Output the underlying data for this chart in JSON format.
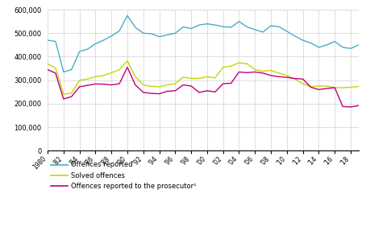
{
  "years": [
    1980,
    1981,
    1982,
    1983,
    1984,
    1985,
    1986,
    1987,
    1988,
    1989,
    1990,
    1991,
    1992,
    1993,
    1994,
    1995,
    1996,
    1997,
    1998,
    1999,
    2000,
    2001,
    2002,
    2003,
    2004,
    2005,
    2006,
    2007,
    2008,
    2009,
    2010,
    2011,
    2012,
    2013,
    2014,
    2015,
    2016,
    2017,
    2018,
    2019
  ],
  "offences_reported": [
    470000,
    465000,
    335000,
    345000,
    422000,
    432000,
    455000,
    470000,
    488000,
    510000,
    575000,
    525000,
    500000,
    498000,
    485000,
    493000,
    500000,
    527000,
    520000,
    535000,
    540000,
    535000,
    528000,
    525000,
    550000,
    527000,
    515000,
    505000,
    532000,
    528000,
    508000,
    488000,
    470000,
    458000,
    440000,
    450000,
    465000,
    440000,
    435000,
    450000
  ],
  "solved_offences": [
    370000,
    352000,
    240000,
    245000,
    300000,
    305000,
    315000,
    320000,
    332000,
    345000,
    382000,
    315000,
    280000,
    274000,
    272000,
    280000,
    285000,
    313000,
    308000,
    307000,
    315000,
    310000,
    355000,
    360000,
    374000,
    370000,
    345000,
    338000,
    342000,
    330000,
    320000,
    305000,
    285000,
    272000,
    275000,
    275000,
    268000,
    268000,
    270000,
    273000
  ],
  "offences_prosecutor": [
    345000,
    330000,
    220000,
    230000,
    272000,
    278000,
    284000,
    283000,
    280000,
    285000,
    355000,
    280000,
    248000,
    244000,
    242000,
    253000,
    255000,
    280000,
    275000,
    248000,
    255000,
    250000,
    285000,
    287000,
    335000,
    332000,
    335000,
    330000,
    320000,
    315000,
    312000,
    307000,
    305000,
    270000,
    260000,
    265000,
    268000,
    188000,
    186000,
    192000
  ],
  "color_reported": "#4bacc6",
  "color_solved": "#c8d400",
  "color_prosecutor": "#c0007c",
  "xlim_start": 1980,
  "xlim_end": 2019,
  "ylim_min": 0,
  "ylim_max": 600000,
  "ytick_step": 100000,
  "xticks": [
    1980,
    1982,
    1984,
    1986,
    1988,
    1990,
    1992,
    1994,
    1996,
    1998,
    2000,
    2002,
    2004,
    2006,
    2008,
    2010,
    2012,
    2014,
    2016,
    2018
  ],
  "legend_labels": [
    "Offences reported",
    "Solved offences",
    "Offences reported to the prosecutor¹"
  ],
  "background_color": "#ffffff",
  "grid_color": "#d0d0d0"
}
